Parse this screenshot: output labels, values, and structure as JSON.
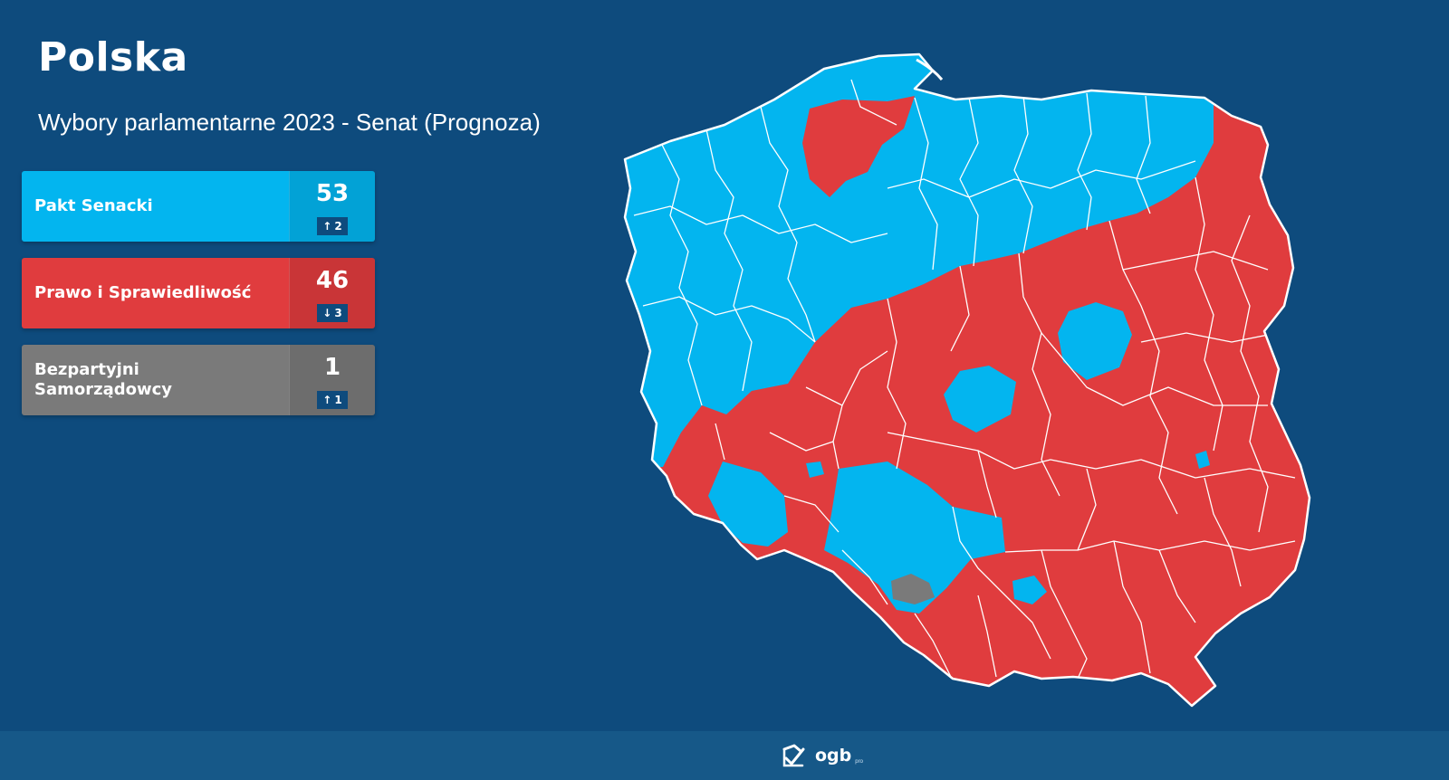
{
  "header": {
    "title": "Polska",
    "subtitle": "Wybory parlamentarne 2023 - Senat (Prognoza)"
  },
  "parties": [
    {
      "name": "Pakt Senacki",
      "seats": "53",
      "change": "2",
      "direction": "up",
      "color": "#03b5ef"
    },
    {
      "name": "Prawo i Sprawiedliwość",
      "seats": "46",
      "change": "3",
      "direction": "down",
      "color": "#e03c3e"
    },
    {
      "name": "Bezpartyjni Samorządowcy",
      "seats": "1",
      "change": "1",
      "direction": "up",
      "color": "#7a7a7a"
    }
  ],
  "colors": {
    "background": "#0e4b7d",
    "pakt_senacki": "#03b5ef",
    "pis": "#e03c3e",
    "bezpartyjni": "#7a7a7a",
    "border": "#ffffff"
  },
  "footer": {
    "logo_icon": "ogb-logo-icon",
    "logo_text": "ogb",
    "logo_sub": "pro"
  }
}
